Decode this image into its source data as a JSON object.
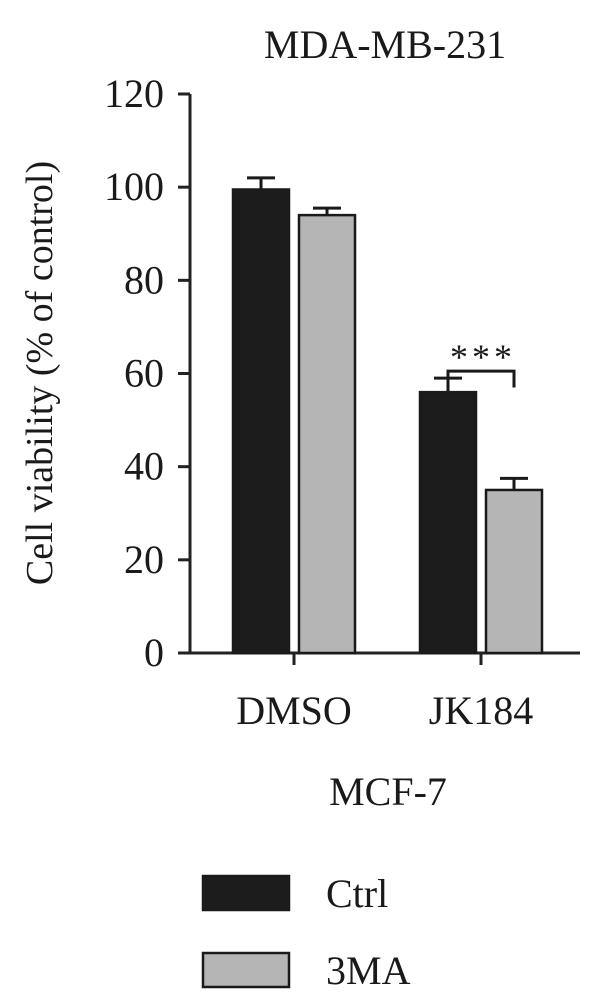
{
  "chart_data": {
    "type": "bar",
    "title": "MDA-MB-231",
    "xlabel": "MCF-7",
    "ylabel": "Cell viability (% of control)",
    "categories": [
      "DMSO",
      "JK184"
    ],
    "ylim": [
      0,
      120
    ],
    "yticks": [
      0,
      20,
      40,
      60,
      80,
      100,
      120
    ],
    "grid": false,
    "legend_position": "bottom",
    "series": [
      {
        "name": "Ctrl",
        "values": [
          99.5,
          56
        ],
        "errors": [
          2.5,
          3
        ],
        "color": "#1c1c1c"
      },
      {
        "name": "3MA",
        "values": [
          94,
          35
        ],
        "errors": [
          1.5,
          2.5
        ],
        "color": "#b5b5b5"
      }
    ],
    "annotations": [
      {
        "text": "***",
        "category": "JK184"
      }
    ]
  }
}
